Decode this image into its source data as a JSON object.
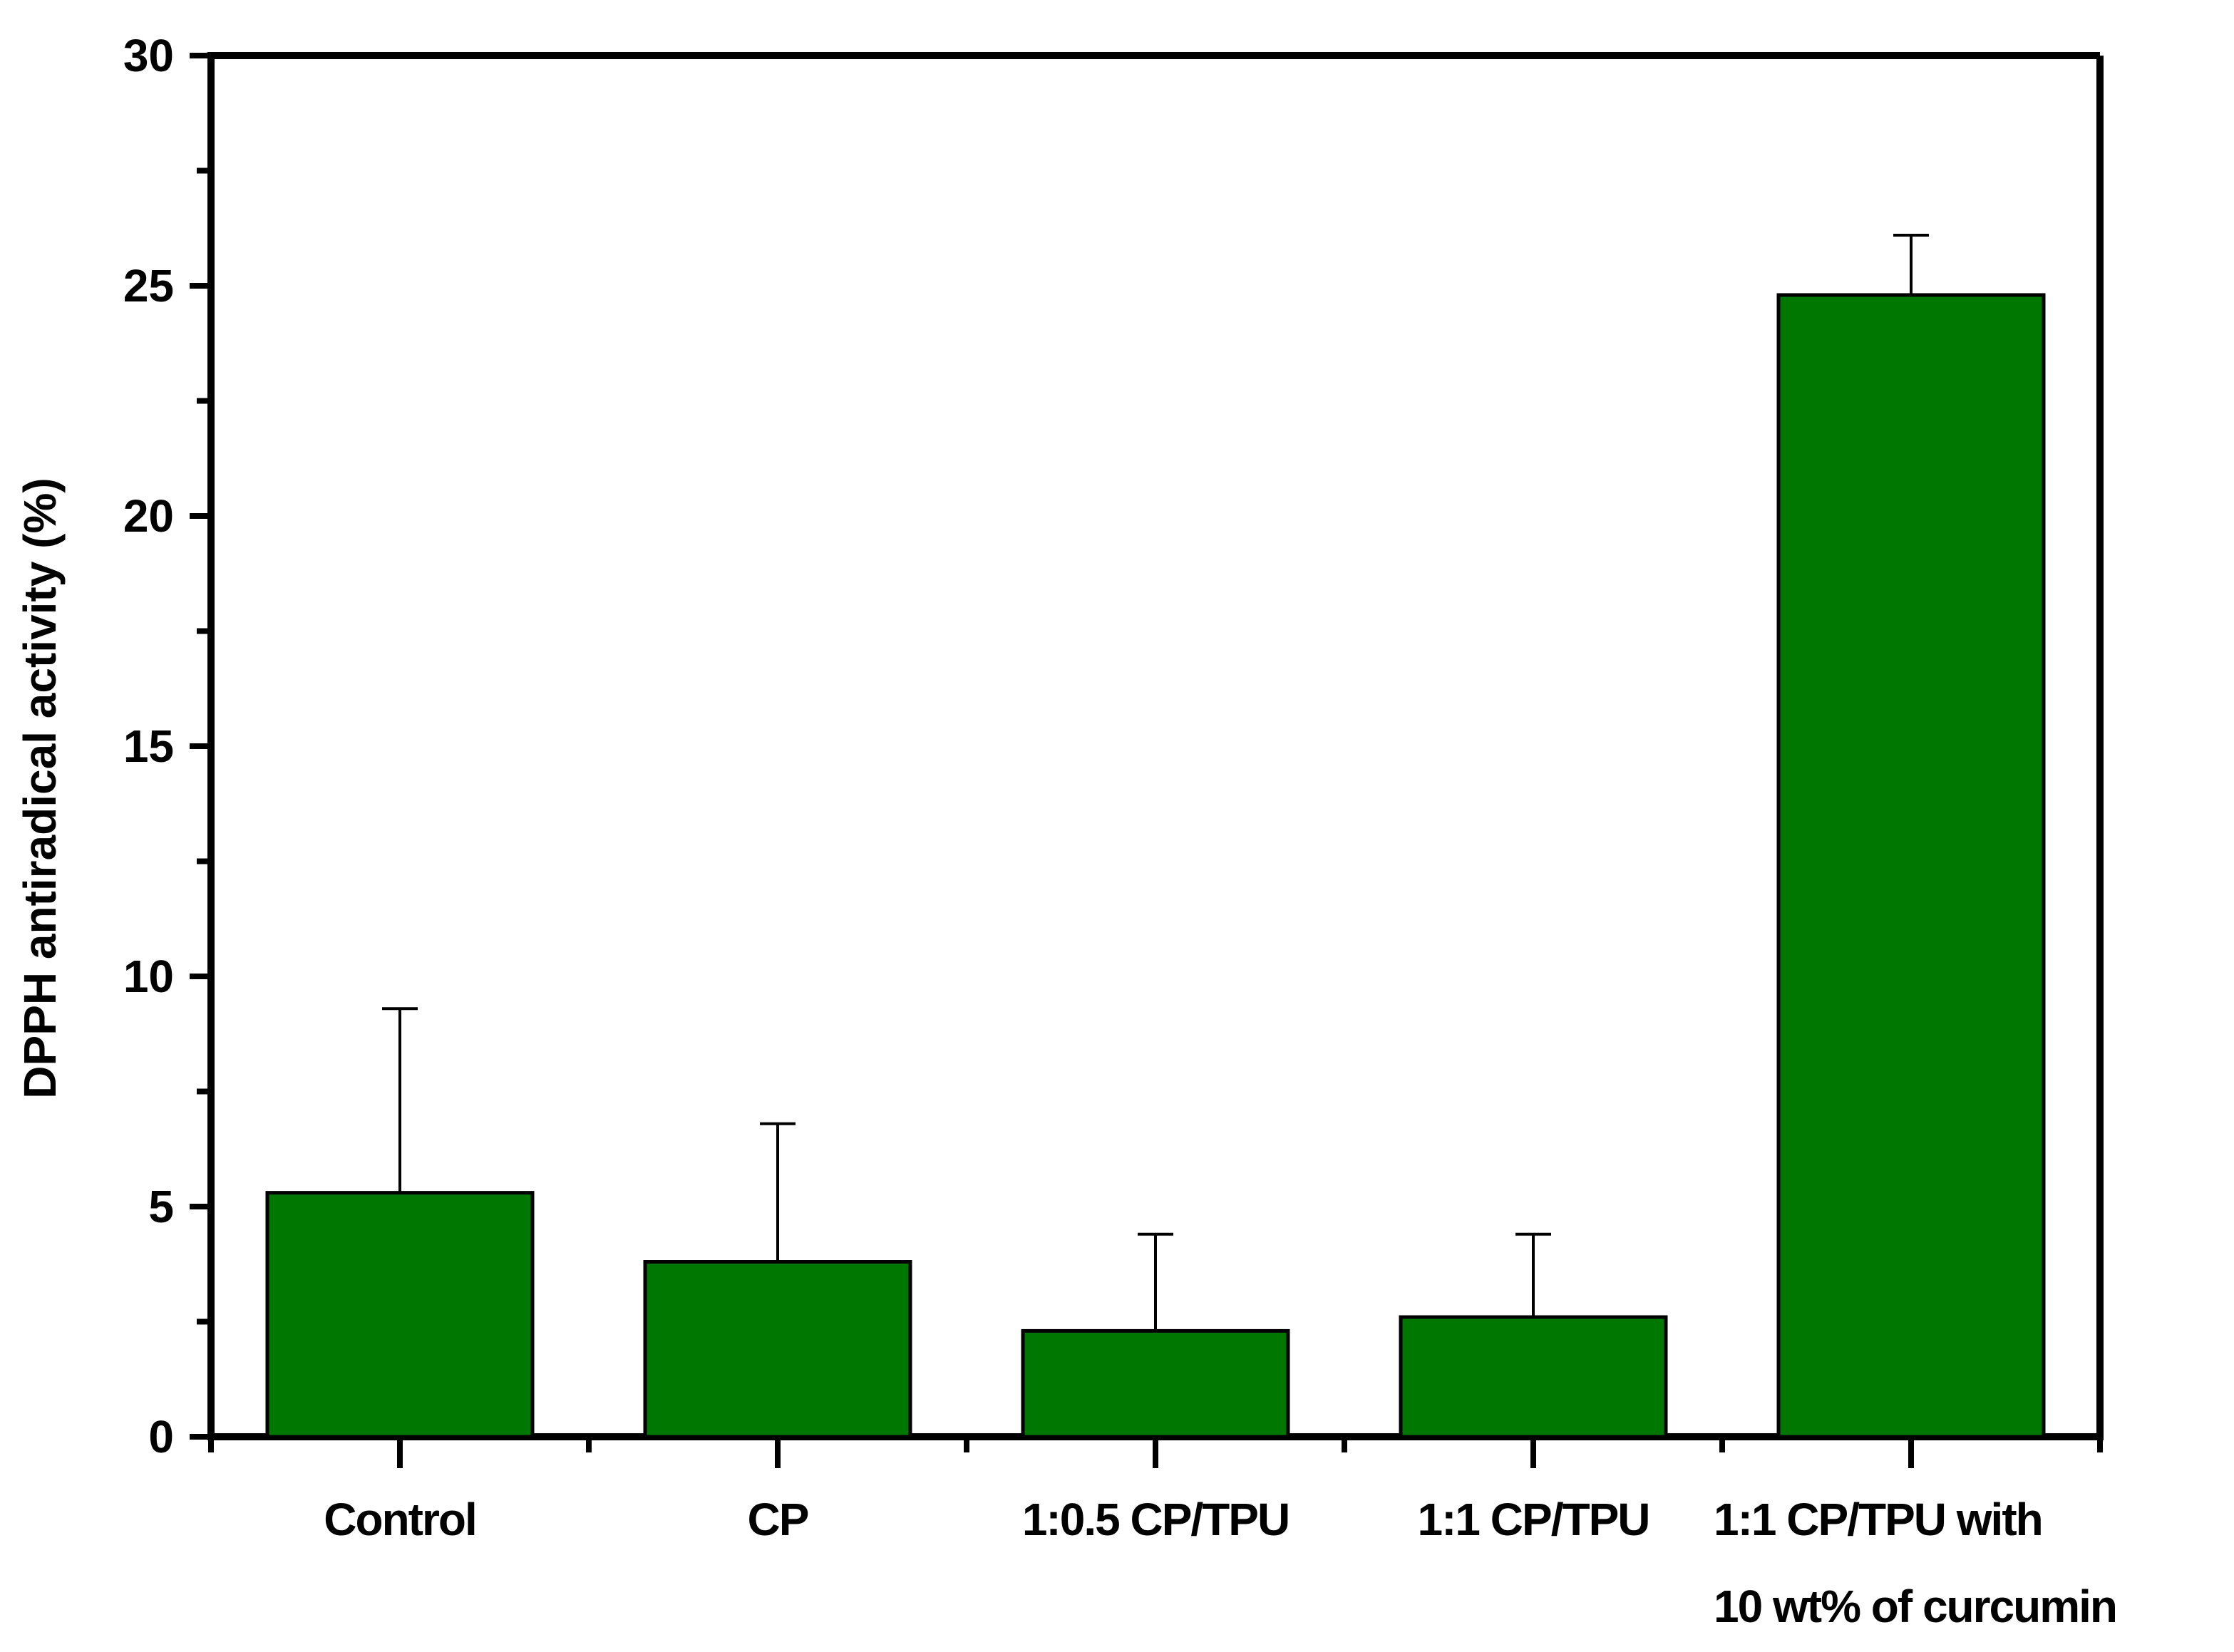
{
  "chart_data": {
    "type": "bar",
    "title": "",
    "xlabel": "",
    "ylabel": "DPPH antiradical activity (%)",
    "ylim": [
      0,
      30
    ],
    "yticks": [
      "0",
      "5",
      "10",
      "15",
      "20",
      "25",
      "30"
    ],
    "categories": [
      [
        "Control"
      ],
      [
        "CP"
      ],
      [
        "1:0.5 CP/TPU"
      ],
      [
        "1:1 CP/TPU"
      ],
      [
        "1:1 CP/TPU with",
        "10 wt% of curcumin"
      ]
    ],
    "values": [
      5.3,
      3.8,
      2.3,
      2.6,
      24.8
    ],
    "errors": [
      4.0,
      3.0,
      2.1,
      1.8,
      1.3
    ],
    "grid": false,
    "colors": {
      "bar": "#007700",
      "axis": "#000000"
    }
  }
}
